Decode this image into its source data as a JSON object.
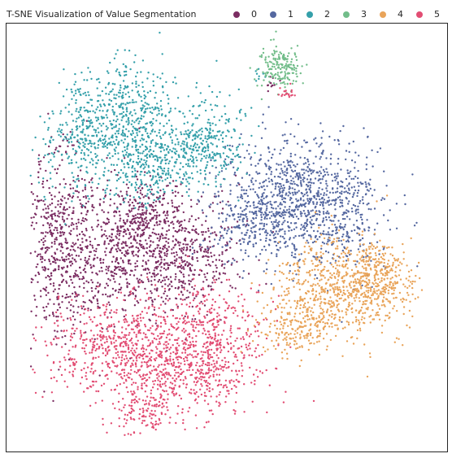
{
  "chart_data": {
    "type": "scatter",
    "title": "T-SNE Visualization of Value Segmentation",
    "xlabel": "",
    "ylabel": "",
    "axes_ticks": "none",
    "grid": false,
    "legend_position": "top-right, horizontal",
    "series": [
      {
        "name": "0",
        "color": "#7b2d62",
        "clusters": [
          {
            "cx": 0.09,
            "cy": 0.5,
            "sx": 0.04,
            "sy": 0.12,
            "n": 500
          },
          {
            "cx": 0.22,
            "cy": 0.54,
            "sx": 0.06,
            "sy": 0.08,
            "n": 450
          },
          {
            "cx": 0.38,
            "cy": 0.55,
            "sx": 0.07,
            "sy": 0.07,
            "n": 550
          },
          {
            "cx": 0.3,
            "cy": 0.44,
            "sx": 0.05,
            "sy": 0.05,
            "n": 200
          },
          {
            "cx": 0.61,
            "cy": 0.13,
            "sx": 0.01,
            "sy": 0.01,
            "n": 12
          }
        ]
      },
      {
        "name": "1",
        "color": "#5568a0",
        "clusters": [
          {
            "cx": 0.66,
            "cy": 0.4,
            "sx": 0.09,
            "sy": 0.07,
            "n": 700
          },
          {
            "cx": 0.76,
            "cy": 0.44,
            "sx": 0.07,
            "sy": 0.07,
            "n": 350
          },
          {
            "cx": 0.57,
            "cy": 0.47,
            "sx": 0.05,
            "sy": 0.05,
            "n": 200
          }
        ]
      },
      {
        "name": "2",
        "color": "#35a0aa",
        "clusters": [
          {
            "cx": 0.27,
            "cy": 0.2,
            "sx": 0.06,
            "sy": 0.07,
            "n": 400
          },
          {
            "cx": 0.16,
            "cy": 0.26,
            "sx": 0.06,
            "sy": 0.07,
            "n": 350
          },
          {
            "cx": 0.33,
            "cy": 0.33,
            "sx": 0.05,
            "sy": 0.04,
            "n": 250
          },
          {
            "cx": 0.45,
            "cy": 0.27,
            "sx": 0.05,
            "sy": 0.05,
            "n": 300
          },
          {
            "cx": 0.58,
            "cy": 0.1,
            "sx": 0.01,
            "sy": 0.01,
            "n": 8
          }
        ]
      },
      {
        "name": "3",
        "color": "#72bd8a",
        "clusters": [
          {
            "cx": 0.63,
            "cy": 0.09,
            "sx": 0.025,
            "sy": 0.025,
            "n": 180
          }
        ]
      },
      {
        "name": "4",
        "color": "#e9a45a",
        "clusters": [
          {
            "cx": 0.78,
            "cy": 0.62,
            "sx": 0.08,
            "sy": 0.06,
            "n": 700
          },
          {
            "cx": 0.67,
            "cy": 0.72,
            "sx": 0.05,
            "sy": 0.04,
            "n": 200
          },
          {
            "cx": 0.88,
            "cy": 0.6,
            "sx": 0.04,
            "sy": 0.04,
            "n": 200
          }
        ]
      },
      {
        "name": "5",
        "color": "#e24d73",
        "clusters": [
          {
            "cx": 0.25,
            "cy": 0.77,
            "sx": 0.12,
            "sy": 0.06,
            "n": 700
          },
          {
            "cx": 0.4,
            "cy": 0.84,
            "sx": 0.08,
            "sy": 0.05,
            "n": 300
          },
          {
            "cx": 0.46,
            "cy": 0.73,
            "sx": 0.07,
            "sy": 0.06,
            "n": 350
          },
          {
            "cx": 0.3,
            "cy": 0.92,
            "sx": 0.04,
            "sy": 0.03,
            "n": 120
          },
          {
            "cx": 0.65,
            "cy": 0.15,
            "sx": 0.01,
            "sy": 0.01,
            "n": 20
          }
        ]
      }
    ]
  }
}
